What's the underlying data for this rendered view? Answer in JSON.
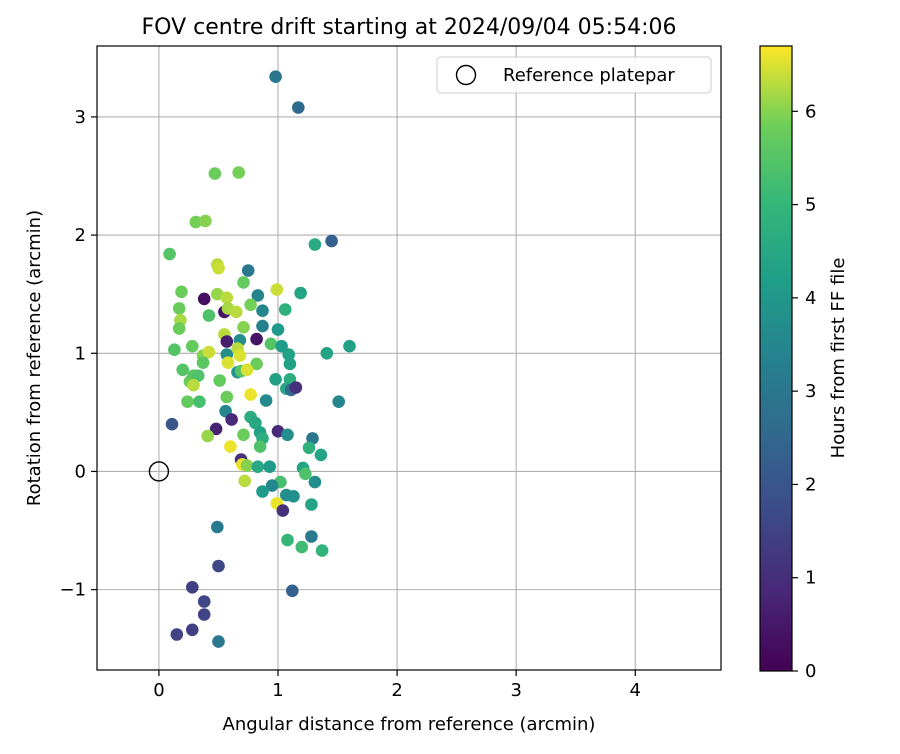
{
  "chart_data": {
    "type": "scatter",
    "title": "FOV centre drift starting at 2024/09/04 05:54:06",
    "xlabel": "Angular distance from reference (arcmin)",
    "ylabel": "Rotation from reference (arcmin)",
    "xlim": [
      -0.52,
      4.72
    ],
    "ylim": [
      -1.68,
      3.6
    ],
    "xticks": [
      0,
      1,
      2,
      3,
      4
    ],
    "xtick_labels": [
      "0",
      "1",
      "2",
      "3",
      "4"
    ],
    "yticks": [
      -1,
      0,
      1,
      2,
      3
    ],
    "ytick_labels": [
      "−1",
      "0",
      "1",
      "2",
      "3"
    ],
    "grid": true,
    "legend": {
      "placement": "top-right",
      "entries": [
        {
          "label": "Reference platepar",
          "marker": "open-circle"
        }
      ]
    },
    "reference_point": {
      "x": 0,
      "y": 0
    },
    "colorbar": {
      "label": "Hours from first FF file",
      "colormap": "viridis",
      "range": [
        0,
        6.7
      ],
      "ticks": [
        0,
        1,
        2,
        3,
        4,
        5,
        6
      ],
      "tick_labels": [
        "0",
        "1",
        "2",
        "3",
        "4",
        "5",
        "6"
      ]
    },
    "points": [
      {
        "x": 0.98,
        "y": 3.34,
        "c": 3.0
      },
      {
        "x": 1.17,
        "y": 3.08,
        "c": 2.6
      },
      {
        "x": 1.45,
        "y": 1.95,
        "c": 2.3
      },
      {
        "x": 1.31,
        "y": 1.92,
        "c": 4.6
      },
      {
        "x": 0.47,
        "y": 2.52,
        "c": 5.8
      },
      {
        "x": 0.67,
        "y": 2.53,
        "c": 5.9
      },
      {
        "x": 0.31,
        "y": 2.11,
        "c": 5.9
      },
      {
        "x": 0.39,
        "y": 2.12,
        "c": 6.0
      },
      {
        "x": 0.09,
        "y": 1.84,
        "c": 5.5
      },
      {
        "x": 0.49,
        "y": 1.75,
        "c": 6.3
      },
      {
        "x": 0.5,
        "y": 1.72,
        "c": 6.4
      },
      {
        "x": 0.75,
        "y": 1.7,
        "c": 3.0
      },
      {
        "x": 0.71,
        "y": 1.6,
        "c": 5.7
      },
      {
        "x": 0.99,
        "y": 1.54,
        "c": 6.4
      },
      {
        "x": 1.19,
        "y": 1.51,
        "c": 4.4
      },
      {
        "x": 0.19,
        "y": 1.52,
        "c": 5.8
      },
      {
        "x": 0.38,
        "y": 1.46,
        "c": 0.3
      },
      {
        "x": 0.49,
        "y": 1.5,
        "c": 6.1
      },
      {
        "x": 0.57,
        "y": 1.47,
        "c": 6.3
      },
      {
        "x": 0.83,
        "y": 1.49,
        "c": 3.4
      },
      {
        "x": 0.17,
        "y": 1.38,
        "c": 5.8
      },
      {
        "x": 0.55,
        "y": 1.35,
        "c": 0.4
      },
      {
        "x": 0.58,
        "y": 1.38,
        "c": 6.2
      },
      {
        "x": 0.65,
        "y": 1.35,
        "c": 6.3
      },
      {
        "x": 0.77,
        "y": 1.41,
        "c": 5.9
      },
      {
        "x": 0.87,
        "y": 1.36,
        "c": 3.5
      },
      {
        "x": 1.06,
        "y": 1.37,
        "c": 4.8
      },
      {
        "x": 0.18,
        "y": 1.28,
        "c": 6.2
      },
      {
        "x": 0.42,
        "y": 1.32,
        "c": 5.4
      },
      {
        "x": 0.87,
        "y": 1.23,
        "c": 3.3
      },
      {
        "x": 1.0,
        "y": 1.2,
        "c": 4.1
      },
      {
        "x": 0.17,
        "y": 1.21,
        "c": 5.8
      },
      {
        "x": 0.55,
        "y": 1.16,
        "c": 6.3
      },
      {
        "x": 0.71,
        "y": 1.22,
        "c": 6.0
      },
      {
        "x": 0.57,
        "y": 1.1,
        "c": 0.6
      },
      {
        "x": 0.68,
        "y": 1.11,
        "c": 3.7
      },
      {
        "x": 0.82,
        "y": 1.12,
        "c": 0.4
      },
      {
        "x": 0.94,
        "y": 1.08,
        "c": 5.5
      },
      {
        "x": 1.03,
        "y": 1.06,
        "c": 4.2
      },
      {
        "x": 1.6,
        "y": 1.06,
        "c": 4.3
      },
      {
        "x": 0.13,
        "y": 1.03,
        "c": 5.5
      },
      {
        "x": 0.28,
        "y": 1.06,
        "c": 5.7
      },
      {
        "x": 0.37,
        "y": 0.98,
        "c": 6.0
      },
      {
        "x": 0.42,
        "y": 1.01,
        "c": 6.4
      },
      {
        "x": 0.57,
        "y": 0.99,
        "c": 3.7
      },
      {
        "x": 0.66,
        "y": 1.04,
        "c": 6.3
      },
      {
        "x": 0.68,
        "y": 0.98,
        "c": 6.5
      },
      {
        "x": 1.09,
        "y": 0.99,
        "c": 4.3
      },
      {
        "x": 1.41,
        "y": 1.0,
        "c": 4.4
      },
      {
        "x": 0.37,
        "y": 0.92,
        "c": 5.6
      },
      {
        "x": 0.58,
        "y": 0.92,
        "c": 6.5
      },
      {
        "x": 0.82,
        "y": 0.91,
        "c": 5.8
      },
      {
        "x": 1.1,
        "y": 0.91,
        "c": 4.3
      },
      {
        "x": 0.2,
        "y": 0.86,
        "c": 5.5
      },
      {
        "x": 0.66,
        "y": 0.84,
        "c": 3.9
      },
      {
        "x": 0.69,
        "y": 0.85,
        "c": 5.5
      },
      {
        "x": 0.74,
        "y": 0.86,
        "c": 6.5
      },
      {
        "x": 0.26,
        "y": 0.76,
        "c": 5.8
      },
      {
        "x": 0.29,
        "y": 0.81,
        "c": 5.6
      },
      {
        "x": 0.33,
        "y": 0.81,
        "c": 5.4
      },
      {
        "x": 0.29,
        "y": 0.73,
        "c": 6.3
      },
      {
        "x": 0.51,
        "y": 0.77,
        "c": 5.7
      },
      {
        "x": 0.98,
        "y": 0.78,
        "c": 4.3
      },
      {
        "x": 1.1,
        "y": 0.78,
        "c": 4.7
      },
      {
        "x": 1.07,
        "y": 0.7,
        "c": 4.5
      },
      {
        "x": 1.11,
        "y": 0.69,
        "c": 2.5
      },
      {
        "x": 1.15,
        "y": 0.71,
        "c": 1.0
      },
      {
        "x": 0.24,
        "y": 0.59,
        "c": 5.7
      },
      {
        "x": 0.34,
        "y": 0.59,
        "c": 5.3
      },
      {
        "x": 0.57,
        "y": 0.63,
        "c": 5.8
      },
      {
        "x": 0.77,
        "y": 0.65,
        "c": 6.6
      },
      {
        "x": 0.9,
        "y": 0.6,
        "c": 3.6
      },
      {
        "x": 1.51,
        "y": 0.59,
        "c": 3.5
      },
      {
        "x": 0.56,
        "y": 0.51,
        "c": 3.5
      },
      {
        "x": 0.77,
        "y": 0.46,
        "c": 4.7
      },
      {
        "x": 0.61,
        "y": 0.44,
        "c": 0.9
      },
      {
        "x": 0.11,
        "y": 0.4,
        "c": 2.0
      },
      {
        "x": 0.81,
        "y": 0.41,
        "c": 4.5
      },
      {
        "x": 0.85,
        "y": 0.33,
        "c": 4.3
      },
      {
        "x": 0.48,
        "y": 0.36,
        "c": 0.7
      },
      {
        "x": 0.41,
        "y": 0.3,
        "c": 6.1
      },
      {
        "x": 0.71,
        "y": 0.31,
        "c": 5.8
      },
      {
        "x": 0.87,
        "y": 0.28,
        "c": 4.7
      },
      {
        "x": 1.0,
        "y": 0.34,
        "c": 0.9
      },
      {
        "x": 1.08,
        "y": 0.31,
        "c": 3.7
      },
      {
        "x": 1.29,
        "y": 0.28,
        "c": 3.0
      },
      {
        "x": 0.6,
        "y": 0.21,
        "c": 6.6
      },
      {
        "x": 0.85,
        "y": 0.21,
        "c": 5.4
      },
      {
        "x": 1.26,
        "y": 0.2,
        "c": 4.8
      },
      {
        "x": 1.36,
        "y": 0.14,
        "c": 4.4
      },
      {
        "x": 0.69,
        "y": 0.1,
        "c": 1.0
      },
      {
        "x": 0.7,
        "y": 0.06,
        "c": 6.6
      },
      {
        "x": 0.74,
        "y": 0.05,
        "c": 6.0
      },
      {
        "x": 0.83,
        "y": 0.04,
        "c": 4.5
      },
      {
        "x": 0.93,
        "y": 0.04,
        "c": 4.1
      },
      {
        "x": 1.21,
        "y": 0.03,
        "c": 4.4
      },
      {
        "x": 1.23,
        "y": -0.02,
        "c": 5.4
      },
      {
        "x": 0.72,
        "y": -0.08,
        "c": 6.3
      },
      {
        "x": 1.02,
        "y": -0.09,
        "c": 5.3
      },
      {
        "x": 1.31,
        "y": -0.09,
        "c": 3.7
      },
      {
        "x": 0.95,
        "y": -0.12,
        "c": 3.5
      },
      {
        "x": 0.87,
        "y": -0.17,
        "c": 4.1
      },
      {
        "x": 1.07,
        "y": -0.2,
        "c": 3.7
      },
      {
        "x": 1.13,
        "y": -0.21,
        "c": 3.8
      },
      {
        "x": 0.99,
        "y": -0.27,
        "c": 6.6
      },
      {
        "x": 1.28,
        "y": -0.28,
        "c": 4.4
      },
      {
        "x": 1.04,
        "y": -0.33,
        "c": 1.0
      },
      {
        "x": 0.49,
        "y": -0.47,
        "c": 3.1
      },
      {
        "x": 1.28,
        "y": -0.55,
        "c": 3.1
      },
      {
        "x": 1.08,
        "y": -0.58,
        "c": 5.0
      },
      {
        "x": 1.2,
        "y": -0.64,
        "c": 5.2
      },
      {
        "x": 1.37,
        "y": -0.67,
        "c": 4.9
      },
      {
        "x": 0.5,
        "y": -0.8,
        "c": 1.6
      },
      {
        "x": 0.28,
        "y": -0.98,
        "c": 1.4
      },
      {
        "x": 1.12,
        "y": -1.01,
        "c": 2.3
      },
      {
        "x": 0.38,
        "y": -1.1,
        "c": 1.6
      },
      {
        "x": 0.38,
        "y": -1.21,
        "c": 1.5
      },
      {
        "x": 0.28,
        "y": -1.34,
        "c": 1.4
      },
      {
        "x": 0.15,
        "y": -1.38,
        "c": 1.5
      },
      {
        "x": 0.5,
        "y": -1.44,
        "c": 3.0
      }
    ]
  }
}
